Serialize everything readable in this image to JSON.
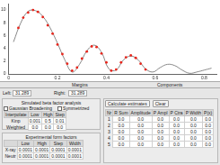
{
  "chart_data": {
    "type": "scatter",
    "xlim": [
      0,
      0.85
    ],
    "ylim": [
      0,
      11
    ],
    "xticks": [
      0,
      0.2,
      0.4,
      0.6,
      0.8
    ],
    "yticks": [
      0,
      2,
      4,
      6,
      8,
      10
    ],
    "grid": false,
    "series": [
      {
        "type": "line",
        "color": "#888888",
        "line_style": "solid",
        "x": [
          0.02,
          0.05,
          0.08,
          0.11,
          0.14,
          0.17,
          0.2,
          0.23,
          0.26,
          0.29,
          0.32,
          0.35,
          0.38,
          0.41,
          0.44,
          0.47,
          0.5,
          0.53,
          0.56,
          0.59,
          0.62,
          0.65,
          0.68,
          0.71,
          0.74,
          0.77,
          0.8,
          0.83
        ],
        "values": [
          5.0,
          8.0,
          9.8,
          9.9,
          9.0,
          7.2,
          4.8,
          2.2,
          0.3,
          1.5,
          3.6,
          4.5,
          3.4,
          0.8,
          0.6,
          2.2,
          2.8,
          2.2,
          0.8,
          0.3,
          1.0,
          1.5,
          1.3,
          0.6,
          0.1,
          0.3,
          0.6,
          0.9
        ]
      },
      {
        "type": "scatter",
        "color": "#e8261c",
        "marker": "circle",
        "x": [
          0.04,
          0.06,
          0.08,
          0.1,
          0.12,
          0.14,
          0.16,
          0.18,
          0.2,
          0.22,
          0.24,
          0.26,
          0.28,
          0.3,
          0.32,
          0.34,
          0.36,
          0.38,
          0.4,
          0.42,
          0.44,
          0.46,
          0.48,
          0.5,
          0.52,
          0.54,
          0.56
        ],
        "values": [
          7.2,
          8.8,
          9.6,
          10.0,
          9.7,
          8.9,
          7.6,
          6.3,
          4.6,
          3.1,
          1.6,
          0.5,
          1.0,
          2.4,
          3.5,
          4.3,
          4.2,
          3.2,
          1.8,
          0.5,
          0.7,
          1.8,
          2.6,
          2.9,
          2.5,
          1.6,
          0.7
        ]
      }
    ]
  },
  "tabs": [
    "Margins",
    "Components"
  ],
  "margins": {
    "left_label": "Left:",
    "left_value": "31.289",
    "right_label": "Right:",
    "right_value": "31.289"
  },
  "simulation_panel": {
    "title": "Simulated beta factor analysis",
    "options": [
      "Gaussian Broadening",
      "Symmetrized"
    ],
    "header": [
      "Interpolate",
      "Low",
      "High",
      "Step"
    ],
    "rows": [
      [
        "Kinp",
        "0.001",
        "0.5",
        "0.01"
      ],
      [
        "Weighted",
        "0.0",
        "0.0",
        "0.0"
      ]
    ]
  },
  "form_factor_panel": {
    "title": "Experimental form factors",
    "header": [
      "",
      "Low",
      "High",
      "Step",
      "Width"
    ],
    "rows": [
      [
        "X-ray",
        "0.0001",
        "0.0001",
        "0.0001",
        "0.0001"
      ],
      [
        "Neutr",
        "0.0001",
        "0.0001",
        "0.0001",
        "0.0001"
      ]
    ]
  },
  "estimates_panel": {
    "buttons": [
      "Calculate estimates",
      "Clear"
    ],
    "header": [
      "Nr",
      "R Sum",
      "Amplitude",
      "P Ampl",
      "P Ctra",
      "P Width",
      "P(x)"
    ],
    "rows": [
      [
        "1",
        "0.0",
        "0.0",
        "0.0",
        "0.0",
        "0.0",
        "0.0"
      ],
      [
        "2",
        "0.0",
        "0.0",
        "0.0",
        "0.0",
        "0.0",
        "0.0"
      ],
      [
        "3",
        "0.0",
        "0.0",
        "0.0",
        "0.0",
        "0.0",
        "0.0"
      ],
      [
        "4",
        "0.0",
        "0.0",
        "0.0",
        "0.0",
        "0.0",
        "0.0"
      ],
      [
        "5",
        "0.0",
        "0.0",
        "0.0",
        "0.0",
        "0.0",
        "0.0"
      ]
    ]
  }
}
